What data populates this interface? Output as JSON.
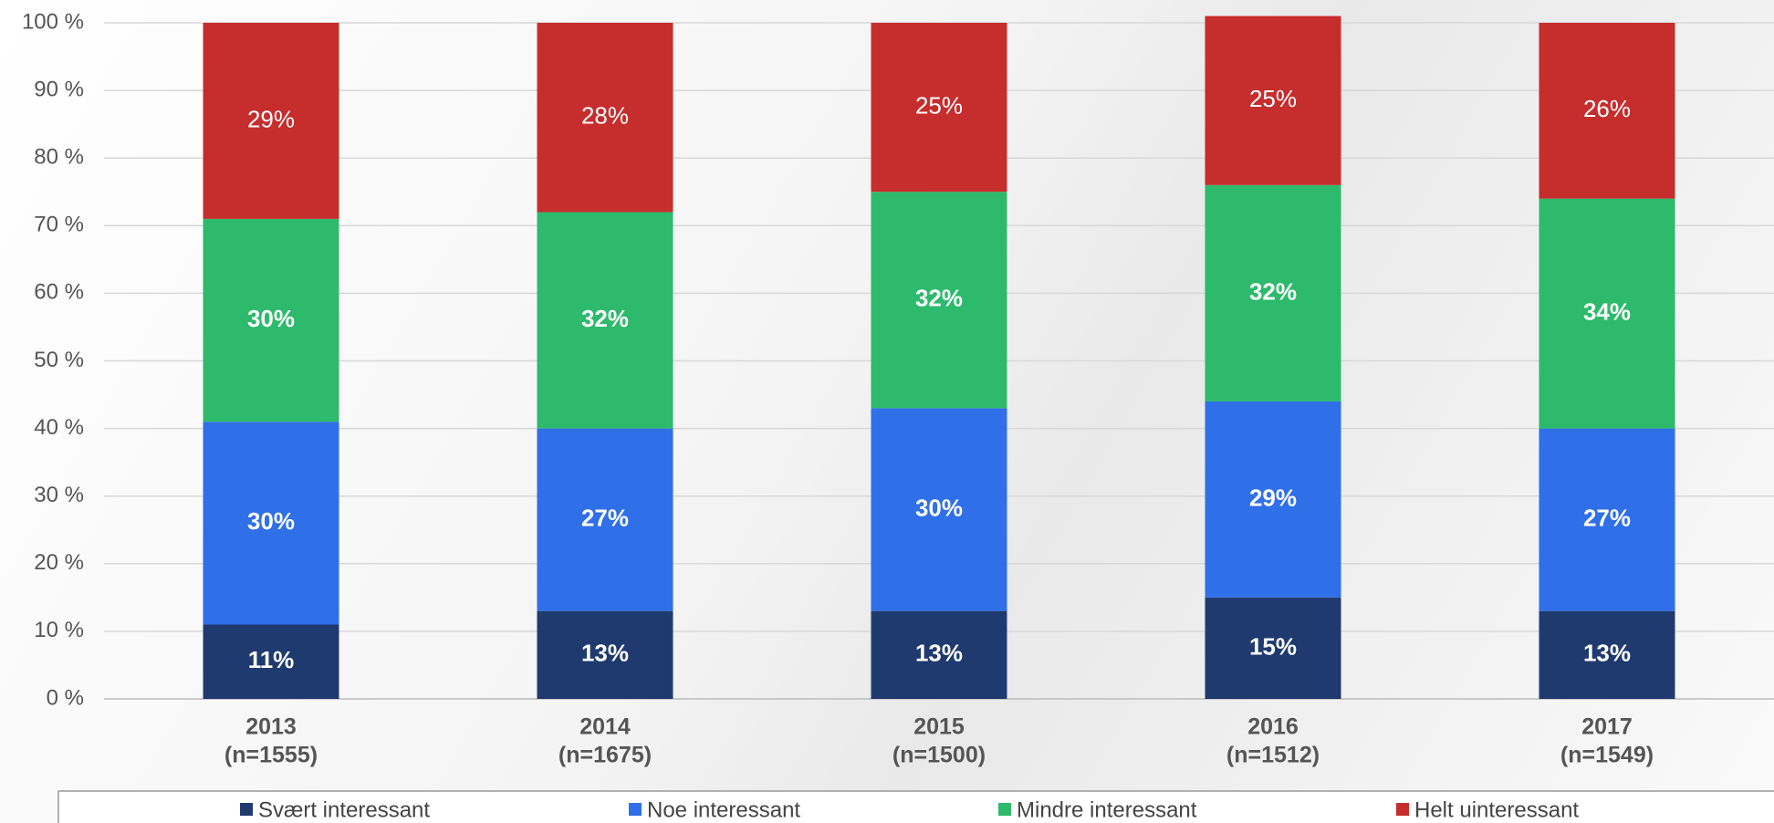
{
  "chart_data": {
    "type": "stacked_bar",
    "categories": [
      "2013",
      "2014",
      "2015",
      "2016",
      "2017"
    ],
    "category_notes": [
      "(n=1555)",
      "(n=1675)",
      "(n=1500)",
      "(n=1512)",
      "(n=1549)"
    ],
    "series": [
      {
        "name": "Svært interessant",
        "color": "#1f3a6e",
        "values": [
          11,
          13,
          13,
          15,
          13
        ],
        "value_labels": [
          "11%",
          "13%",
          "13%",
          "15%",
          "13%"
        ]
      },
      {
        "name": "Noe interessant",
        "color": "#2f6fe8",
        "values": [
          30,
          27,
          30,
          29,
          27
        ],
        "value_labels": [
          "30%",
          "27%",
          "30%",
          "29%",
          "27%"
        ]
      },
      {
        "name": "Mindre interessant",
        "color": "#2dba6c",
        "values": [
          30,
          32,
          32,
          32,
          34
        ],
        "value_labels": [
          "30%",
          "32%",
          "32%",
          "32%",
          "34%"
        ]
      },
      {
        "name": "Helt uinteressant",
        "color": "#c62d2d",
        "values": [
          29,
          28,
          25,
          25,
          26
        ],
        "value_labels": [
          "29%",
          "28%",
          "25%",
          "25%",
          "26%"
        ]
      }
    ],
    "ylim": [
      0,
      100
    ],
    "yticks": [
      {
        "value": 0,
        "label": "0 %"
      },
      {
        "value": 10,
        "label": "10 %"
      },
      {
        "value": 20,
        "label": "20 %"
      },
      {
        "value": 30,
        "label": "30 %"
      },
      {
        "value": 40,
        "label": "40 %"
      },
      {
        "value": 50,
        "label": "50 %"
      },
      {
        "value": 60,
        "label": "60 %"
      },
      {
        "value": 70,
        "label": "70 %"
      },
      {
        "value": 80,
        "label": "80 %"
      },
      {
        "value": 90,
        "label": "90 %"
      },
      {
        "value": 100,
        "label": "100 %"
      }
    ],
    "grid": true,
    "legend": "bottom"
  }
}
